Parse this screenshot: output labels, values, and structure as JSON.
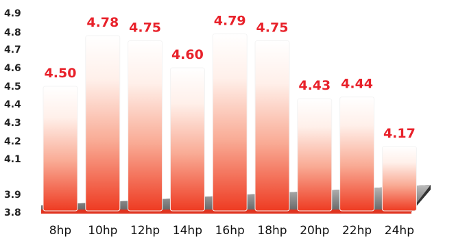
{
  "chart_data": {
    "type": "bar",
    "title": "",
    "xlabel": "",
    "ylabel": "",
    "categories": [
      "8hp",
      "10hp",
      "12hp",
      "14hp",
      "16hp",
      "18hp",
      "20hp",
      "22hp",
      "24hp"
    ],
    "values": [
      4.5,
      4.78,
      4.75,
      4.6,
      4.79,
      4.75,
      4.43,
      4.44,
      4.17
    ],
    "data_labels": [
      "4.50",
      "4.78",
      "4.75",
      "4.60",
      "4.79",
      "4.75",
      "4.43",
      "4.44",
      "4.17"
    ],
    "y_ticks": [
      "4.9",
      "4.8",
      "4.7",
      "4.6",
      "4.5",
      "4.4",
      "4.3",
      "4.2",
      "4.1",
      "3.9",
      "3.8"
    ],
    "y_tick_values": [
      4.9,
      4.8,
      4.7,
      4.6,
      4.5,
      4.4,
      4.3,
      4.2,
      4.1,
      3.9,
      3.8
    ],
    "ylim": [
      3.8,
      4.9
    ],
    "axis_break": [
      3.9,
      4.1
    ],
    "grid": false,
    "legend": "none",
    "colors": {
      "bar_top": "#ffffff",
      "bar_bottom": "#ee3b22",
      "label": "#e8212a",
      "floor": "#444444",
      "tick_text": "#222222"
    }
  }
}
